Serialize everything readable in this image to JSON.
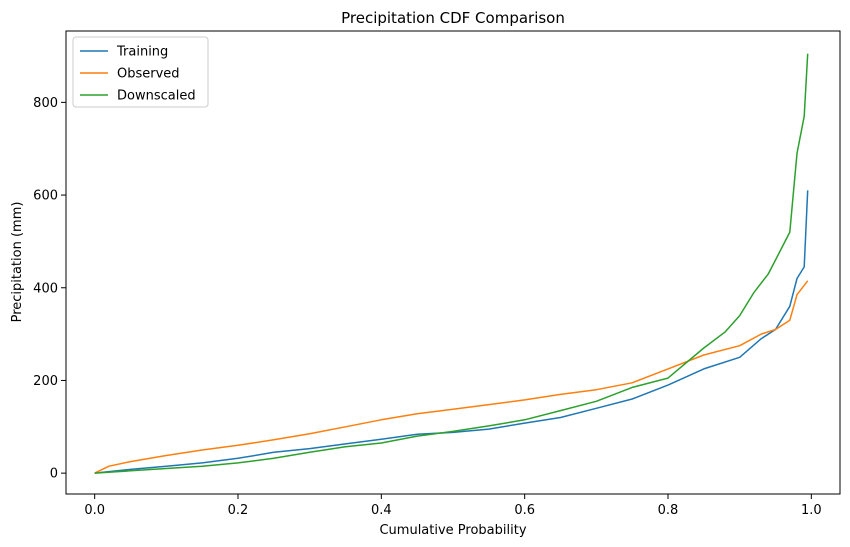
{
  "chart_data": {
    "type": "line",
    "title": "Precipitation CDF Comparison",
    "xlabel": "Cumulative Probability",
    "ylabel": "Precipitation (mm)",
    "xlim": [
      -0.04,
      1.04
    ],
    "ylim": [
      -45,
      954
    ],
    "xticks": [
      0.0,
      0.2,
      0.4,
      0.6,
      0.8,
      1.0
    ],
    "xtick_labels": [
      "0.0",
      "0.2",
      "0.4",
      "0.6",
      "0.8",
      "1.0"
    ],
    "yticks": [
      0,
      200,
      400,
      600,
      800
    ],
    "ytick_labels": [
      "0",
      "200",
      "400",
      "600",
      "800"
    ],
    "grid": false,
    "legend_position": "upper-left",
    "series": [
      {
        "name": "Training",
        "color": "#1f77b4",
        "x": [
          0.0,
          0.05,
          0.1,
          0.15,
          0.2,
          0.25,
          0.3,
          0.35,
          0.4,
          0.45,
          0.5,
          0.55,
          0.6,
          0.65,
          0.7,
          0.75,
          0.8,
          0.85,
          0.9,
          0.93,
          0.95,
          0.97,
          0.98,
          0.99,
          0.995
        ],
        "values": [
          0,
          8,
          15,
          22,
          32,
          45,
          53,
          63,
          73,
          84,
          88,
          95,
          108,
          120,
          140,
          160,
          190,
          225,
          250,
          290,
          310,
          360,
          420,
          445,
          610
        ]
      },
      {
        "name": "Observed",
        "color": "#ff7f0e",
        "x": [
          0.0,
          0.02,
          0.05,
          0.1,
          0.15,
          0.2,
          0.25,
          0.3,
          0.35,
          0.4,
          0.45,
          0.5,
          0.55,
          0.6,
          0.65,
          0.7,
          0.75,
          0.8,
          0.85,
          0.9,
          0.93,
          0.95,
          0.97,
          0.98,
          0.995
        ],
        "values": [
          0,
          15,
          25,
          38,
          50,
          60,
          72,
          85,
          100,
          115,
          128,
          138,
          148,
          158,
          170,
          180,
          195,
          225,
          255,
          275,
          300,
          310,
          330,
          385,
          415
        ]
      },
      {
        "name": "Downscaled",
        "color": "#2ca02c",
        "x": [
          0.0,
          0.05,
          0.1,
          0.15,
          0.2,
          0.25,
          0.3,
          0.35,
          0.4,
          0.45,
          0.5,
          0.55,
          0.6,
          0.65,
          0.7,
          0.75,
          0.8,
          0.85,
          0.88,
          0.9,
          0.92,
          0.94,
          0.95,
          0.96,
          0.97,
          0.98,
          0.99,
          0.995
        ],
        "values": [
          0,
          5,
          10,
          15,
          22,
          32,
          45,
          57,
          65,
          80,
          90,
          102,
          115,
          135,
          155,
          185,
          205,
          270,
          305,
          340,
          390,
          430,
          460,
          490,
          520,
          690,
          770,
          905
        ]
      }
    ]
  }
}
